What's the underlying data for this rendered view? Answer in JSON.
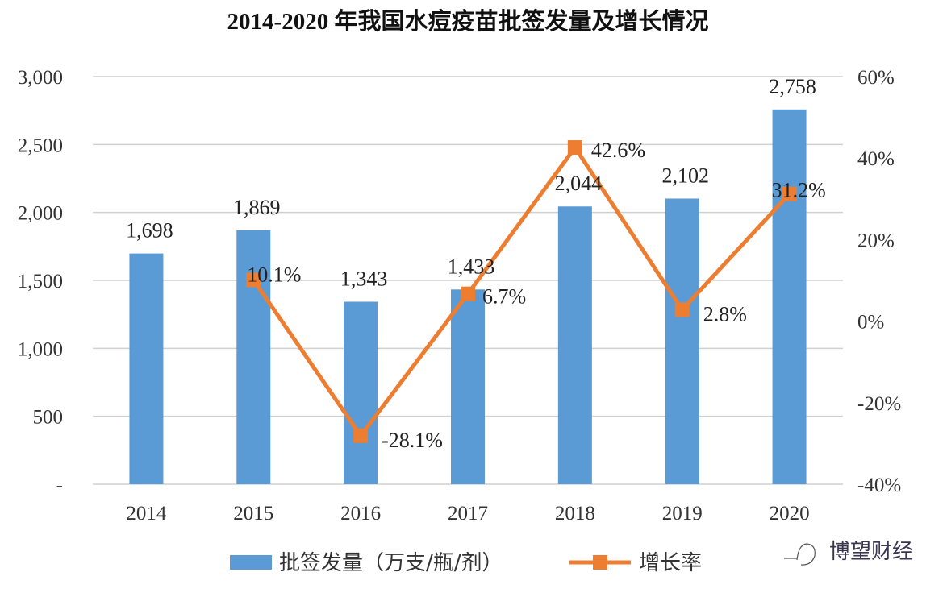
{
  "chart_data": {
    "type": "bar+line",
    "title": "2014-2020 年我国水痘疫苗批签发量及增长情况",
    "categories": [
      "2014",
      "2015",
      "2016",
      "2017",
      "2018",
      "2019",
      "2020"
    ],
    "series": [
      {
        "name": "批签发量（万支/瓶/剂）",
        "type": "bar",
        "axis": "left",
        "color": "#5b9bd5",
        "values": [
          1698,
          1869,
          1343,
          1433,
          2044,
          2102,
          2758
        ],
        "labels": [
          "1,698",
          "1,869",
          "1,343",
          "1,433",
          "2,044",
          "2,102",
          "2,758"
        ]
      },
      {
        "name": "增长率",
        "type": "line",
        "axis": "right",
        "color": "#ed7d31",
        "values": [
          null,
          10.1,
          -28.1,
          6.7,
          42.6,
          2.8,
          31.2
        ],
        "labels": [
          "",
          "10.1%",
          "-28.1%",
          "6.7%",
          "42.6%",
          "2.8%",
          "31.2%"
        ]
      }
    ],
    "y_left": {
      "range": [
        0,
        3000
      ],
      "ticks": [
        0,
        500,
        1000,
        1500,
        2000,
        2500,
        3000
      ],
      "tick_labels": [
        "-",
        "500",
        "1,000",
        "1,500",
        "2,000",
        "2,500",
        "3,000"
      ]
    },
    "y_right": {
      "range": [
        -40,
        60
      ],
      "ticks": [
        -40,
        -20,
        0,
        20,
        40,
        60
      ],
      "tick_labels": [
        "-40%",
        "-20%",
        "0%",
        "20%",
        "40%",
        "60%"
      ]
    },
    "grid": true,
    "legend": "bottom"
  },
  "watermark": {
    "text": "博望财经"
  }
}
